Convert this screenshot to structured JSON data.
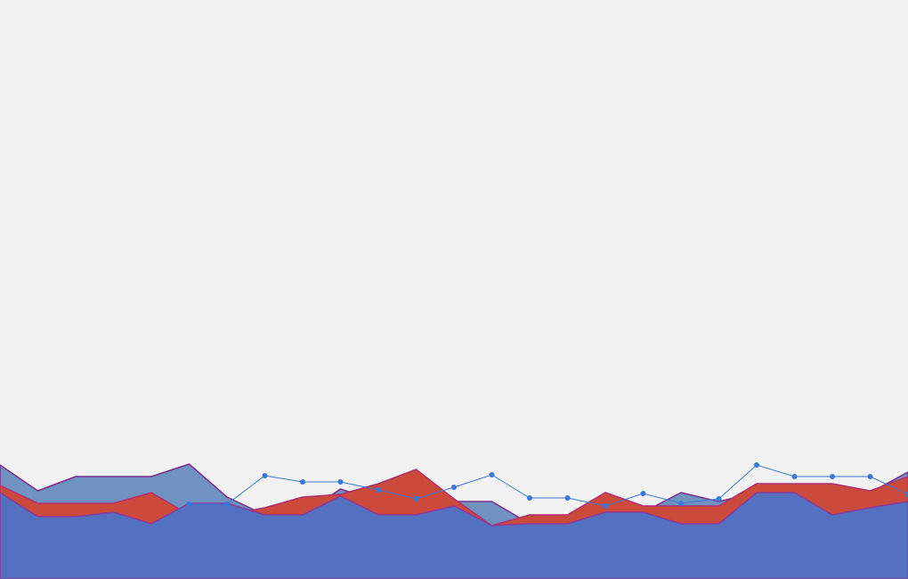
{
  "chart_data": {
    "type": "area",
    "categories": [
      null,
      null,
      null,
      null,
      null,
      null,
      null,
      null,
      null,
      null,
      null,
      null,
      null,
      null,
      null,
      null,
      null,
      null,
      null,
      null,
      null,
      null,
      null,
      null,
      null
    ],
    "ylim": [
      0,
      150
    ],
    "series": [
      {
        "color": "#7092c0",
        "stroke": "#7b2d8b",
        "values": [
          128,
          99,
          115,
          115,
          115,
          129,
          92,
          72,
          72,
          101,
          87,
          95,
          87,
          87,
          62,
          62,
          75,
          75,
          97,
          87,
          97,
          97,
          97,
          97,
          120
        ]
      },
      {
        "color": "#cc4a3c",
        "stroke": "#b03070",
        "values": [
          105,
          85,
          85,
          85,
          97,
          72,
          72,
          80,
          92,
          95,
          107,
          123,
          90,
          60,
          72,
          72,
          97,
          82,
          82,
          82,
          107,
          107,
          107,
          99,
          115
        ]
      },
      {
        "color": "#5470c0",
        "stroke": "#8a3a9a",
        "values": [
          97,
          70,
          70,
          75,
          62,
          85,
          85,
          72,
          72,
          93,
          72,
          72,
          82,
          60,
          62,
          62,
          75,
          75,
          62,
          62,
          97,
          97,
          72,
          80,
          87
        ]
      },
      {
        "type": "line",
        "color": "#3a78d8",
        "values": [
          null,
          null,
          null,
          null,
          null,
          84,
          84,
          116,
          109,
          109,
          100,
          90,
          103,
          117,
          91,
          91,
          82,
          96,
          85,
          90,
          128,
          115,
          115,
          115,
          95
        ]
      }
    ]
  }
}
